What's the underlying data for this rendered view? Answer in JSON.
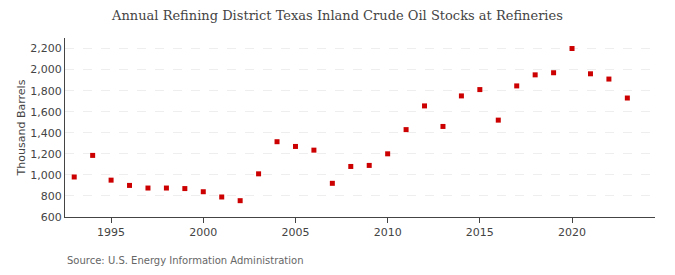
{
  "chart_data": {
    "type": "scatter",
    "title": "Annual Refining District Texas Inland Crude Oil Stocks at Refineries",
    "ylabel": "Thousand Barrels",
    "source": "Source: U.S. Energy Information Administration",
    "x": [
      1993,
      1994,
      1995,
      1996,
      1997,
      1998,
      1999,
      2000,
      2001,
      2002,
      2003,
      2004,
      2005,
      2006,
      2007,
      2008,
      2009,
      2010,
      2011,
      2012,
      2013,
      2014,
      2015,
      2016,
      2017,
      2018,
      2019,
      2020,
      2021,
      2022,
      2023
    ],
    "values": [
      980,
      1185,
      950,
      900,
      875,
      875,
      870,
      840,
      790,
      755,
      1010,
      1315,
      1270,
      1235,
      920,
      1080,
      1090,
      1200,
      1430,
      1655,
      1460,
      1750,
      1810,
      1520,
      1845,
      1950,
      1970,
      2200,
      1960,
      1910,
      1730
    ],
    "color": "#cc0000",
    "marker": "square",
    "xlim": [
      1992.5,
      2024.5
    ],
    "ylim": [
      600,
      2300
    ],
    "xticks": [
      1995,
      2000,
      2005,
      2010,
      2015,
      2020
    ],
    "yticks": [
      600,
      800,
      {
        "value": 1000,
        "label": "1,000"
      },
      {
        "value": 1200,
        "label": "1,200"
      },
      {
        "value": 1400,
        "label": "1,400"
      },
      {
        "value": 1600,
        "label": "1,600"
      },
      {
        "value": 1800,
        "label": "1,800"
      },
      {
        "value": 2000,
        "label": "2,000"
      },
      {
        "value": 2200,
        "label": "2,200"
      }
    ],
    "grid": true
  }
}
